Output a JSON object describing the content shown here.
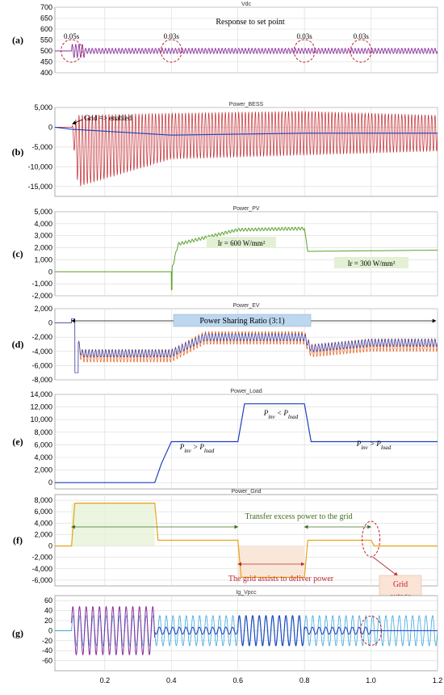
{
  "x_axis": {
    "ticks": [
      "0.2",
      "0.4",
      "0.6",
      "0.8",
      "1.0",
      "1.2"
    ],
    "xlim": [
      0.05,
      1.2
    ]
  },
  "colors": {
    "blue": "#1f3fbf",
    "purple": "#8b2f9e",
    "red": "#c0262c",
    "orange": "#e8601c",
    "green": "#5aa02c",
    "yellow": "#e8a317",
    "cyan": "#3aa6dd",
    "darkred": "#c0262c",
    "darkgreen": "#3f6f1f",
    "grid": "#d9d9d9"
  },
  "chart_data": [
    {
      "id": "a",
      "panel_label": "(a)",
      "type": "line",
      "title": "Vdc",
      "ylim": [
        400,
        700
      ],
      "yticks": [
        "400",
        "450",
        "500",
        "550",
        "600",
        "650",
        "700"
      ],
      "series": [
        {
          "color": "purple",
          "description": "oscillating DC voltage around 500",
          "x": [
            0.05,
            0.1,
            0.12,
            0.4,
            0.8,
            1.0,
            1.2
          ],
          "y": [
            500,
            500,
            520,
            500,
            500,
            500,
            500
          ]
        }
      ],
      "annotations": [
        {
          "text": "Response to set point"
        },
        {
          "text": "0.05s",
          "x": 0.1
        },
        {
          "text": "0.03s",
          "x": 0.4
        },
        {
          "text": "0.03s",
          "x": 0.8
        },
        {
          "text": "0.03s",
          "x": 0.97
        }
      ]
    },
    {
      "id": "b",
      "panel_label": "(b)",
      "type": "line",
      "title": "Power_BESS",
      "ylim": [
        -17500,
        5000
      ],
      "yticks": [
        "5,000",
        "0",
        "-5,000",
        "-10,000",
        "-15,000"
      ],
      "series": [
        {
          "color": "red",
          "description": "oscillating BESS power",
          "x": [
            0.05,
            0.1,
            0.12,
            0.4,
            0.8,
            1.2
          ],
          "y_envelope_top": [
            0,
            0,
            3000,
            3500,
            4000,
            3000
          ],
          "y_envelope_bottom": [
            0,
            0,
            -15000,
            -8000,
            -7000,
            -6000
          ]
        },
        {
          "color": "blue",
          "description": "average BESS power",
          "x": [
            0.05,
            0.1,
            0.4,
            0.8,
            1.2
          ],
          "y": [
            0,
            -500,
            -2000,
            -1500,
            -1500
          ]
        }
      ],
      "annotations": [
        {
          "text": "Grid => enabled",
          "x": 0.1
        }
      ]
    },
    {
      "id": "c",
      "panel_label": "(c)",
      "type": "line",
      "title": "Power_PV",
      "ylim": [
        -2000,
        5000
      ],
      "yticks": [
        "5,000",
        "4,000",
        "3,000",
        "2,000",
        "1,000",
        "0",
        "-1,000",
        "-2,000"
      ],
      "series": [
        {
          "color": "green",
          "x": [
            0.05,
            0.4,
            0.42,
            0.6,
            0.8,
            0.81,
            1.2
          ],
          "y": [
            0,
            0,
            2300,
            3500,
            3600,
            1700,
            1800
          ]
        }
      ],
      "annotations": [
        {
          "text": "Ir = 600 W/mm²"
        },
        {
          "text": "Ir = 300 W/mm²"
        }
      ]
    },
    {
      "id": "d",
      "panel_label": "(d)",
      "type": "line",
      "title": "Power_EV",
      "ylim": [
        -8000,
        2000
      ],
      "yticks": [
        "2,000",
        "0",
        "-2,000",
        "-4,000",
        "-6,000",
        "-8,000"
      ],
      "series": [
        {
          "color": "orange",
          "x": [
            0.05,
            0.1,
            0.13,
            0.4,
            0.5,
            0.8,
            0.82,
            1.0,
            1.2
          ],
          "y": [
            0,
            0,
            -4600,
            -4600,
            -2100,
            -2100,
            -3900,
            -3100,
            -3100
          ]
        },
        {
          "color": "blue",
          "x": [
            0.05,
            0.1,
            0.13,
            0.4,
            0.5,
            0.8,
            0.82,
            1.0,
            1.2
          ],
          "y": [
            0,
            0,
            -4300,
            -4300,
            -2000,
            -2000,
            -3600,
            -2800,
            -2800
          ]
        }
      ],
      "annotations": [
        {
          "text": "Power Sharing Ratio (3:1)"
        }
      ]
    },
    {
      "id": "e",
      "panel_label": "(e)",
      "type": "line",
      "title": "Power_Load",
      "ylim": [
        -1000,
        14000
      ],
      "yticks": [
        "14,000",
        "12,000",
        "10,000",
        "8,000",
        "6,000",
        "4,000",
        "2,000",
        "0"
      ],
      "series": [
        {
          "color": "blue",
          "x": [
            0.05,
            0.35,
            0.37,
            0.4,
            0.6,
            0.62,
            0.8,
            0.82,
            1.2
          ],
          "y": [
            0,
            0,
            3000,
            6500,
            6500,
            12500,
            12500,
            6500,
            6500
          ]
        }
      ],
      "annotations": [
        {
          "text": "Pinv < Pload"
        },
        {
          "text": "Pinv > Pload"
        },
        {
          "text": "Pinv > Pload"
        }
      ]
    },
    {
      "id": "f",
      "panel_label": "(f)",
      "type": "line",
      "title": "Power_Grid",
      "ylim": [
        -7000,
        9000
      ],
      "yticks": [
        "8,000",
        "6,000",
        "4,000",
        "2,000",
        "0",
        "-2,000",
        "-4,000",
        "-6,000"
      ],
      "series": [
        {
          "color": "yellow",
          "x": [
            0.05,
            0.1,
            0.11,
            0.35,
            0.36,
            0.6,
            0.61,
            0.8,
            0.81,
            1.0,
            1.01,
            1.2
          ],
          "y": [
            0,
            0,
            7500,
            7500,
            1000,
            1000,
            -5500,
            -5500,
            1000,
            1000,
            0,
            0
          ]
        }
      ],
      "annotations": [
        {
          "text": "Transfer excess power to the grid"
        },
        {
          "text": "The grid assists to deliver power"
        },
        {
          "text": "Grid\noutage"
        }
      ]
    },
    {
      "id": "g",
      "panel_label": "(g)",
      "type": "line",
      "title": "Ig_Vpcc",
      "ylim": [
        -80,
        70
      ],
      "yticks": [
        "60",
        "40",
        "20",
        "0",
        "-20",
        "-40",
        "-60"
      ],
      "series": [
        {
          "color": "cyan",
          "description": "Vpcc sinusoid amplitude ~30",
          "x": [
            0.05,
            0.1,
            1.2
          ],
          "amplitude": [
            0,
            30,
            30
          ]
        },
        {
          "color": "purple",
          "description": "grid current, large",
          "x": [
            0.1,
            0.35
          ],
          "amplitude": [
            50,
            50
          ]
        },
        {
          "color": "blue",
          "description": "grid current, small",
          "x": [
            0.35,
            0.6,
            0.8,
            1.0
          ],
          "amplitude": [
            7,
            30,
            7,
            7
          ]
        }
      ]
    }
  ]
}
